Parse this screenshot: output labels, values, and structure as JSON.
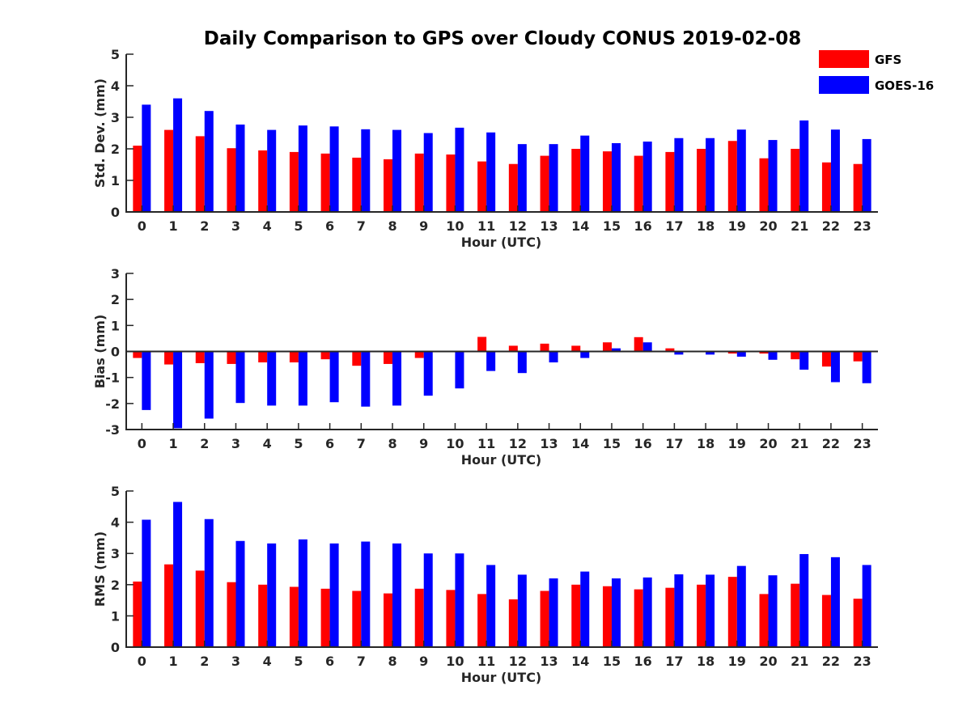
{
  "chart_data": {
    "type": "bar",
    "title": "Daily Comparison to GPS over Cloudy CONUS 2019-02-08",
    "categories": [
      "0",
      "1",
      "2",
      "3",
      "4",
      "5",
      "6",
      "7",
      "8",
      "9",
      "10",
      "11",
      "12",
      "13",
      "14",
      "15",
      "16",
      "17",
      "18",
      "19",
      "20",
      "21",
      "22",
      "23"
    ],
    "legend": {
      "placement": "top-right",
      "entries": [
        {
          "name": "GFS",
          "color": "#ff0000"
        },
        {
          "name": "GOES-16",
          "color": "#0000ff"
        }
      ]
    },
    "panels": [
      {
        "id": "std",
        "ylabel": "Std. Dev. (mm)",
        "xlabel": "Hour (UTC)",
        "ylim": [
          0,
          5
        ],
        "yticks": [
          0,
          1,
          2,
          3,
          4,
          5
        ],
        "series": [
          {
            "name": "GFS",
            "color": "#ff0000",
            "values": [
              2.1,
              2.6,
              2.4,
              2.02,
              1.95,
              1.9,
              1.85,
              1.72,
              1.67,
              1.85,
              1.82,
              1.6,
              1.52,
              1.78,
              2.0,
              1.92,
              1.78,
              1.9,
              2.0,
              2.25,
              1.7,
              2.0,
              1.57,
              1.52
            ]
          },
          {
            "name": "GOES-16",
            "color": "#0000ff",
            "values": [
              3.4,
              3.6,
              3.2,
              2.77,
              2.6,
              2.74,
              2.71,
              2.62,
              2.6,
              2.5,
              2.67,
              2.52,
              2.15,
              2.15,
              2.42,
              2.18,
              2.23,
              2.34,
              2.34,
              2.61,
              2.28,
              2.9,
              2.61,
              2.31
            ]
          }
        ]
      },
      {
        "id": "bias",
        "ylabel": "Bias (mm)",
        "xlabel": "Hour (UTC)",
        "ylim": [
          -3,
          3
        ],
        "yticks": [
          -3,
          -2,
          -1,
          0,
          1,
          2,
          3
        ],
        "zero_line": true,
        "series": [
          {
            "name": "GFS",
            "color": "#ff0000",
            "values": [
              -0.25,
              -0.5,
              -0.45,
              -0.48,
              -0.42,
              -0.42,
              -0.3,
              -0.55,
              -0.48,
              -0.25,
              0.0,
              0.56,
              0.22,
              0.3,
              0.22,
              0.35,
              0.55,
              0.12,
              -0.03,
              -0.08,
              -0.08,
              -0.3,
              -0.58,
              -0.38
            ]
          },
          {
            "name": "GOES-16",
            "color": "#0000ff",
            "values": [
              -2.25,
              -2.95,
              -2.58,
              -1.98,
              -2.08,
              -2.08,
              -1.95,
              -2.12,
              -2.08,
              -1.7,
              -1.42,
              -0.75,
              -0.83,
              -0.42,
              -0.25,
              0.12,
              0.35,
              -0.12,
              -0.12,
              -0.2,
              -0.32,
              -0.7,
              -1.18,
              -1.22
            ]
          }
        ]
      },
      {
        "id": "rms",
        "ylabel": "RMS (mm)",
        "xlabel": "Hour (UTC)",
        "ylim": [
          0,
          5
        ],
        "yticks": [
          0,
          1,
          2,
          3,
          4,
          5
        ],
        "series": [
          {
            "name": "GFS",
            "color": "#ff0000",
            "values": [
              2.1,
              2.65,
              2.45,
              2.08,
              2.0,
              1.93,
              1.87,
              1.8,
              1.72,
              1.87,
              1.83,
              1.7,
              1.53,
              1.8,
              2.0,
              1.95,
              1.85,
              1.9,
              2.0,
              2.25,
              1.7,
              2.03,
              1.67,
              1.55
            ]
          },
          {
            "name": "GOES-16",
            "color": "#0000ff",
            "values": [
              4.08,
              4.65,
              4.1,
              3.4,
              3.32,
              3.45,
              3.32,
              3.38,
              3.32,
              3.0,
              3.0,
              2.63,
              2.32,
              2.2,
              2.42,
              2.2,
              2.23,
              2.33,
              2.32,
              2.6,
              2.3,
              2.98,
              2.88,
              2.63
            ]
          }
        ]
      }
    ]
  }
}
